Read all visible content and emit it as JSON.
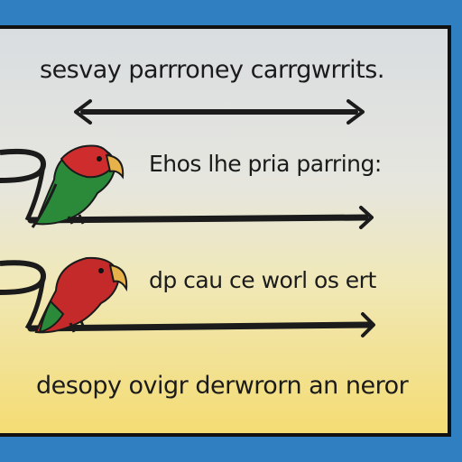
{
  "labels": {
    "top": "sesvay parrroney carrgwrrits.",
    "middle": "Ehos lhe pria parring:",
    "lower": "dp cau ce worl os ert",
    "bottom": "desopy ovigr derwrorn an neror"
  },
  "icons": {
    "parrot_green": "parrot-green-icon",
    "parrot_red": "parrot-red-icon"
  },
  "colors": {
    "background": "#2f7fc1",
    "panel_top": "#d9dde0",
    "panel_bottom": "#f4dc73",
    "outline": "#111111"
  }
}
